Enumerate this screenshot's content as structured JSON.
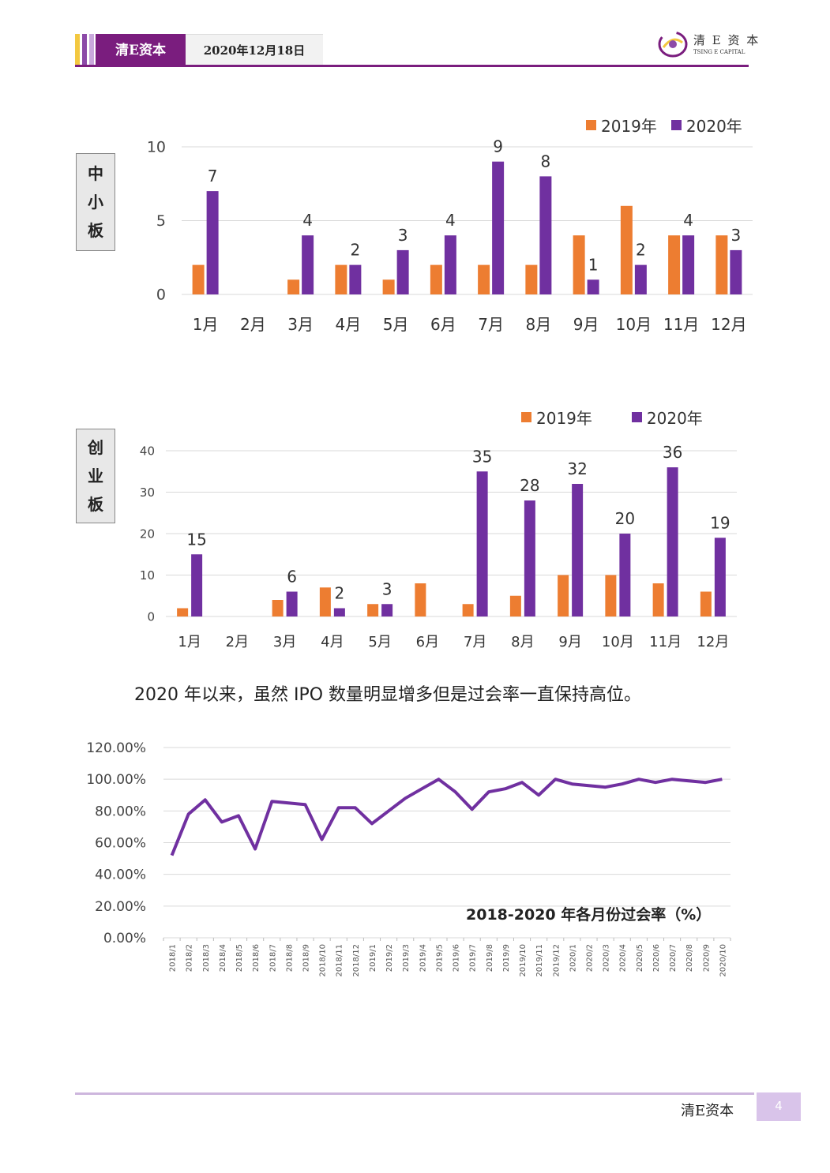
{
  "header": {
    "brand": "清E资本",
    "date": "2020年12月18日",
    "logo_cn": "清 E 资 本",
    "logo_en": "TSING E CAPITAL",
    "colors": {
      "brand_purple": "#7a1d7e",
      "stripe_yellow": "#f3c840",
      "stripe_purple": "#8c4aa8"
    }
  },
  "sme_chart": {
    "side_label": [
      "中",
      "小",
      "板"
    ]
  },
  "gem_chart": {
    "side_label": [
      "创",
      "业",
      "板"
    ]
  },
  "sentence": "2020 年以来，虽然 IPO 数量明显增多但是过会率一直保持高位。",
  "chart_data": [
    {
      "type": "bar",
      "title": "",
      "categories": [
        "1月",
        "2月",
        "3月",
        "4月",
        "5月",
        "6月",
        "7月",
        "8月",
        "9月",
        "10月",
        "11月",
        "12月"
      ],
      "series": [
        {
          "name": "2019年",
          "color": "#ed7d31",
          "values": [
            2,
            0,
            1,
            2,
            1,
            2,
            2,
            2,
            4,
            6,
            4,
            4
          ]
        },
        {
          "name": "2020年",
          "color": "#7030a0",
          "values": [
            7,
            0,
            4,
            2,
            3,
            4,
            9,
            8,
            1,
            2,
            4,
            3
          ]
        }
      ],
      "data_labels": {
        "series": "2020年",
        "values": [
          "7",
          "",
          "4",
          "2",
          "3",
          "4",
          "9",
          "8",
          "1",
          "2",
          "4",
          "3"
        ]
      },
      "ylim": [
        0,
        10
      ],
      "yticks": [
        "0",
        "5",
        "10"
      ],
      "grid": true,
      "legend": "top-right"
    },
    {
      "type": "bar",
      "title": "",
      "categories": [
        "1月",
        "2月",
        "3月",
        "4月",
        "5月",
        "6月",
        "7月",
        "8月",
        "9月",
        "10月",
        "11月",
        "12月"
      ],
      "series": [
        {
          "name": "2019年",
          "color": "#ed7d31",
          "values": [
            2,
            0,
            4,
            7,
            3,
            8,
            3,
            5,
            10,
            10,
            8,
            6
          ]
        },
        {
          "name": "2020年",
          "color": "#7030a0",
          "values": [
            15,
            0,
            6,
            2,
            3,
            0,
            35,
            28,
            32,
            20,
            36,
            19
          ]
        }
      ],
      "data_labels": {
        "series": "2020年",
        "values": [
          "15",
          "",
          "6",
          "2",
          "3",
          "",
          "35",
          "28",
          "32",
          "20",
          "36",
          "19"
        ]
      },
      "ylim": [
        0,
        40
      ],
      "yticks": [
        "0",
        "10",
        "20",
        "30",
        "40"
      ],
      "grid": true,
      "legend": "top-right"
    },
    {
      "type": "line",
      "title": "2018-2020 年各月份过会率（%）",
      "x": [
        "2018/1",
        "2018/2",
        "2018/3",
        "2018/4",
        "2018/5",
        "2018/6",
        "2018/7",
        "2018/8",
        "2018/9",
        "2018/10",
        "2018/11",
        "2018/12",
        "2019/1",
        "2019/2",
        "2019/3",
        "2019/4",
        "2019/5",
        "2019/6",
        "2019/7",
        "2019/8",
        "2019/9",
        "2019/10",
        "2019/11",
        "2019/12",
        "2020/1",
        "2020/2",
        "2020/3",
        "2020/4",
        "2020/5",
        "2020/6",
        "2020/7",
        "2020/8",
        "2020/9",
        "2020/10"
      ],
      "series": [
        {
          "name": "",
          "color": "#7030a0",
          "values": [
            52,
            78,
            87,
            73,
            77,
            56,
            86,
            85,
            84,
            62,
            82,
            82,
            72,
            80,
            88,
            94,
            100,
            92,
            81,
            92,
            94,
            98,
            90,
            100,
            97,
            96,
            95,
            97,
            100,
            98,
            100,
            99,
            98,
            100
          ]
        }
      ],
      "ylim": [
        0,
        120
      ],
      "yticks": [
        "0.00%",
        "20.00%",
        "40.00%",
        "60.00%",
        "80.00%",
        "100.00%",
        "120.00%"
      ],
      "grid": true
    }
  ],
  "footer": {
    "brand": "清E资本",
    "page": "4"
  }
}
